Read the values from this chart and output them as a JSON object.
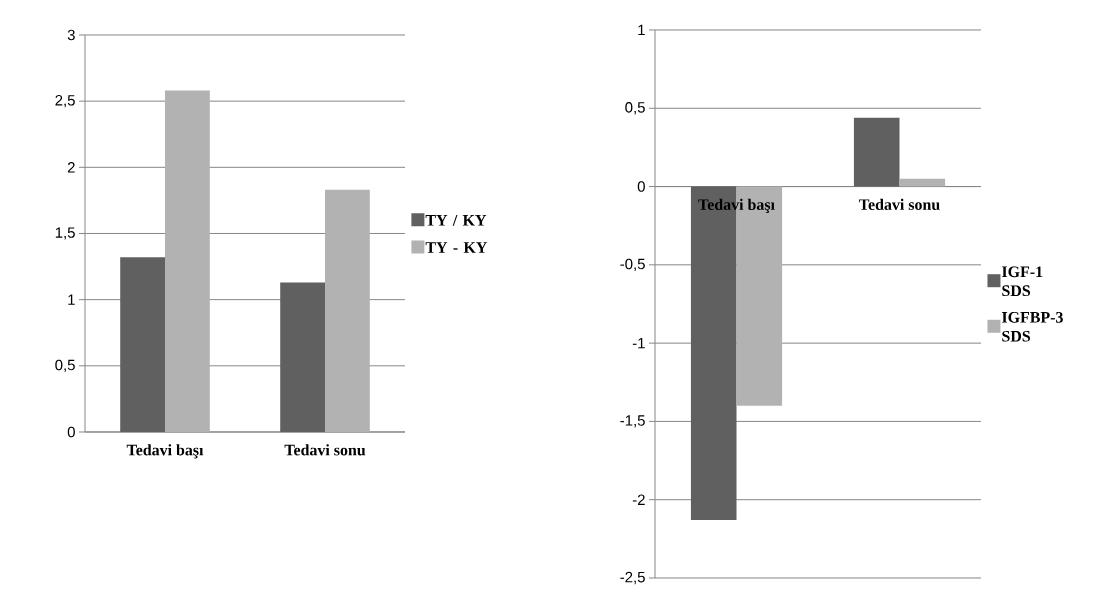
{
  "chart_data": [
    {
      "type": "bar",
      "categories": [
        "Tedavi başı",
        "Tedavi sonu"
      ],
      "series": [
        {
          "name": "TY / KY",
          "color": "#606060",
          "values": [
            1.32,
            1.13
          ]
        },
        {
          "name": "TY - KY",
          "color": "#b2b2b2",
          "values": [
            2.58,
            1.83
          ]
        }
      ],
      "ylim": [
        0,
        3
      ],
      "yticks": [
        0,
        {
          "value": 0.5,
          "label": "0,5"
        },
        1,
        {
          "value": 1.5,
          "label": "1,5"
        },
        2,
        {
          "value": 2.5,
          "label": "2,5"
        },
        3
      ],
      "grid": "y",
      "legend": "right"
    },
    {
      "type": "bar",
      "categories": [
        "Tedavi başı",
        "Tedavi sonu"
      ],
      "series": [
        {
          "name": "IGF-1 SDS",
          "color": "#606060",
          "values": [
            -2.13,
            0.44
          ]
        },
        {
          "name": "IGFBP-3 SDS",
          "color": "#b2b2b2",
          "values": [
            -1.4,
            0.05
          ]
        }
      ],
      "ylim": [
        -2.5,
        1
      ],
      "yticks": [
        {
          "value": -2.5,
          "label": "-2,5"
        },
        -2,
        {
          "value": -1.5,
          "label": "-1,5"
        },
        -1,
        {
          "value": -0.5,
          "label": "-0,5"
        },
        0,
        {
          "value": 0.5,
          "label": "0,5"
        },
        1
      ],
      "grid": "y",
      "legend": "right"
    }
  ]
}
